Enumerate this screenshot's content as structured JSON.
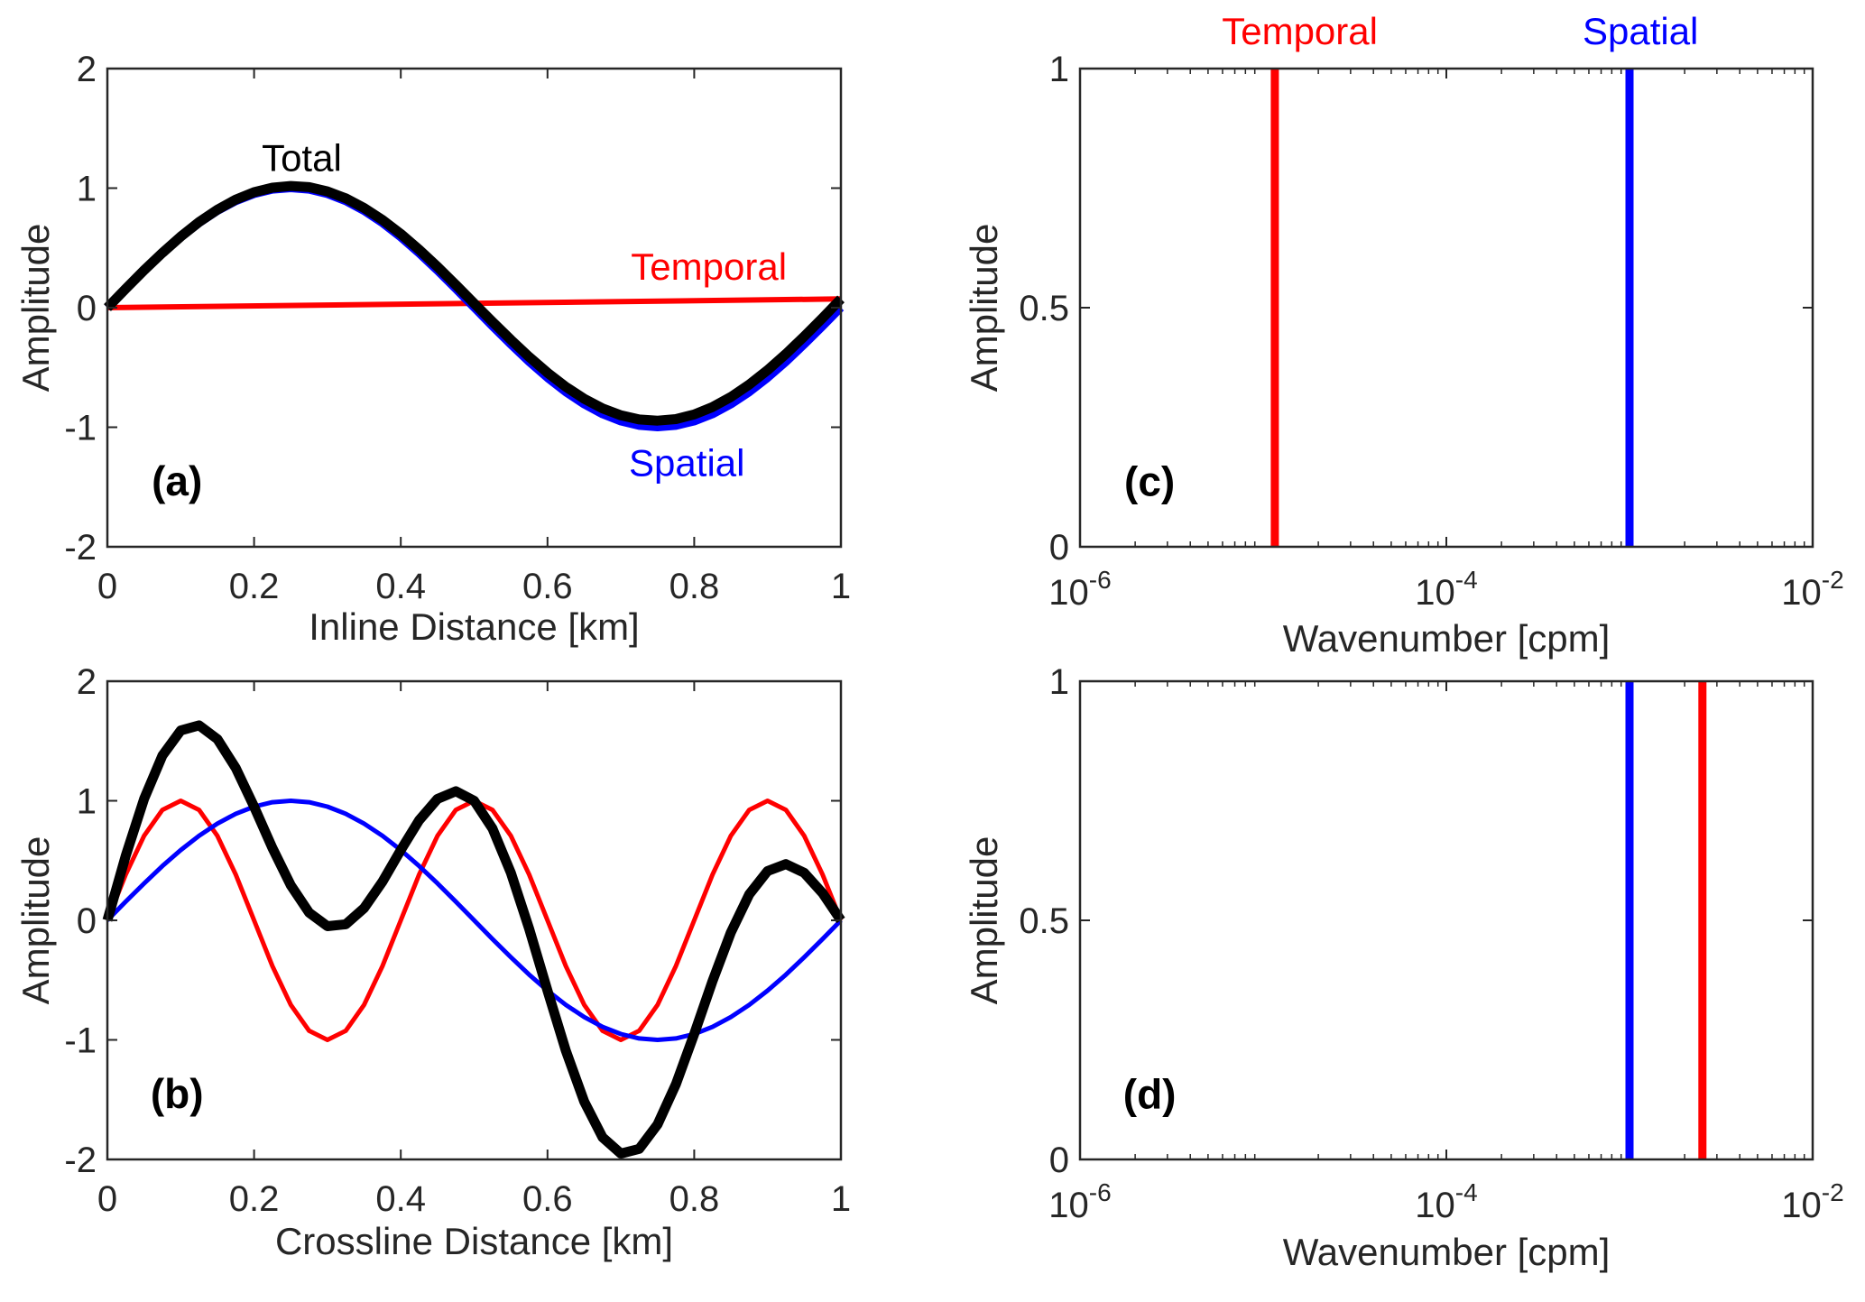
{
  "chart_data": [
    {
      "panel": "(a)",
      "type": "line",
      "xlabel": "Inline Distance [km]",
      "ylabel": "Amplitude",
      "xlim": [
        0,
        1
      ],
      "ylim": [
        -2,
        2
      ],
      "xticks": [
        0,
        0.2,
        0.4,
        0.6,
        0.8,
        1
      ],
      "xtick_labels": [
        "0",
        "0.2",
        "0.4",
        "0.6",
        "0.8",
        "1"
      ],
      "yticks": [
        -2,
        -1,
        0,
        1,
        2
      ],
      "ytick_labels": [
        "-2",
        "-1",
        "0",
        "1",
        "2"
      ],
      "series": [
        {
          "name": "Temporal",
          "color": "#ff0000",
          "x": [
            0,
            1
          ],
          "y": [
            0,
            0.073
          ]
        },
        {
          "name": "Spatial",
          "color": "#0000ff",
          "x": [
            0,
            0.025,
            0.05,
            0.075,
            0.1,
            0.125,
            0.15,
            0.175,
            0.2,
            0.225,
            0.25,
            0.275,
            0.3,
            0.325,
            0.35,
            0.375,
            0.4,
            0.425,
            0.45,
            0.475,
            0.5,
            0.525,
            0.55,
            0.575,
            0.6,
            0.625,
            0.65,
            0.675,
            0.7,
            0.725,
            0.75,
            0.775,
            0.8,
            0.825,
            0.85,
            0.875,
            0.9,
            0.925,
            0.95,
            0.975,
            1
          ],
          "y": [
            0,
            0.156,
            0.309,
            0.454,
            0.588,
            0.707,
            0.809,
            0.891,
            0.951,
            0.988,
            1,
            0.988,
            0.951,
            0.891,
            0.809,
            0.707,
            0.588,
            0.454,
            0.309,
            0.156,
            0,
            -0.156,
            -0.309,
            -0.454,
            -0.588,
            -0.707,
            -0.809,
            -0.891,
            -0.951,
            -0.988,
            -1,
            -0.988,
            -0.951,
            -0.891,
            -0.809,
            -0.707,
            -0.588,
            -0.454,
            -0.309,
            -0.156,
            0
          ]
        },
        {
          "name": "Total",
          "color": "#000000",
          "x": [
            0,
            0.025,
            0.05,
            0.075,
            0.1,
            0.125,
            0.15,
            0.175,
            0.2,
            0.225,
            0.25,
            0.275,
            0.3,
            0.325,
            0.35,
            0.375,
            0.4,
            0.425,
            0.45,
            0.475,
            0.5,
            0.525,
            0.55,
            0.575,
            0.6,
            0.625,
            0.65,
            0.675,
            0.7,
            0.725,
            0.75,
            0.775,
            0.8,
            0.825,
            0.85,
            0.875,
            0.9,
            0.925,
            0.95,
            0.975,
            1
          ],
          "y": [
            0,
            0.158,
            0.313,
            0.459,
            0.595,
            0.716,
            0.82,
            0.904,
            0.966,
            1.004,
            1.018,
            1.008,
            0.973,
            0.915,
            0.834,
            0.734,
            0.617,
            0.485,
            0.342,
            0.191,
            0.036,
            -0.118,
            -0.269,
            -0.412,
            -0.544,
            -0.662,
            -0.762,
            -0.842,
            -0.9,
            -0.935,
            -0.945,
            -0.932,
            -0.893,
            -0.831,
            -0.747,
            -0.643,
            -0.522,
            -0.387,
            -0.24,
            -0.086,
            0.073
          ]
        }
      ],
      "annotations": [
        {
          "text": "Total",
          "color": "#000000"
        },
        {
          "text": "Temporal",
          "color": "#ff0000"
        },
        {
          "text": "Spatial",
          "color": "#0000ff"
        }
      ]
    },
    {
      "panel": "(b)",
      "type": "line",
      "xlabel": "Crossline Distance [km]",
      "ylabel": "Amplitude",
      "xlim": [
        0,
        1
      ],
      "ylim": [
        -2,
        2
      ],
      "xticks": [
        0,
        0.2,
        0.4,
        0.6,
        0.8,
        1
      ],
      "xtick_labels": [
        "0",
        "0.2",
        "0.4",
        "0.6",
        "0.8",
        "1"
      ],
      "yticks": [
        -2,
        -1,
        0,
        1,
        2
      ],
      "ytick_labels": [
        "-2",
        "-1",
        "0",
        "1",
        "2"
      ],
      "series": [
        {
          "name": "Temporal",
          "color": "#ff0000",
          "x": [
            0,
            0.025,
            0.05,
            0.075,
            0.1,
            0.125,
            0.15,
            0.175,
            0.2,
            0.225,
            0.25,
            0.275,
            0.3,
            0.325,
            0.35,
            0.375,
            0.4,
            0.425,
            0.45,
            0.475,
            0.5,
            0.525,
            0.55,
            0.575,
            0.6,
            0.625,
            0.65,
            0.675,
            0.7,
            0.725,
            0.75,
            0.775,
            0.8,
            0.825,
            0.85,
            0.875,
            0.9,
            0.925,
            0.95,
            0.975,
            1
          ],
          "y": [
            0,
            0.383,
            0.707,
            0.924,
            1,
            0.924,
            0.707,
            0.383,
            0,
            -0.383,
            -0.707,
            -0.924,
            -1,
            -0.924,
            -0.707,
            -0.383,
            0,
            0.383,
            0.707,
            0.924,
            1,
            0.924,
            0.707,
            0.383,
            0,
            -0.383,
            -0.707,
            -0.924,
            -1,
            -0.924,
            -0.707,
            -0.383,
            0,
            0.383,
            0.707,
            0.924,
            1,
            0.924,
            0.707,
            0.383,
            0
          ]
        },
        {
          "name": "Spatial",
          "color": "#0000ff",
          "x": [
            0,
            0.025,
            0.05,
            0.075,
            0.1,
            0.125,
            0.15,
            0.175,
            0.2,
            0.225,
            0.25,
            0.275,
            0.3,
            0.325,
            0.35,
            0.375,
            0.4,
            0.425,
            0.45,
            0.475,
            0.5,
            0.525,
            0.55,
            0.575,
            0.6,
            0.625,
            0.65,
            0.675,
            0.7,
            0.725,
            0.75,
            0.775,
            0.8,
            0.825,
            0.85,
            0.875,
            0.9,
            0.925,
            0.95,
            0.975,
            1
          ],
          "y": [
            0,
            0.156,
            0.309,
            0.454,
            0.588,
            0.707,
            0.809,
            0.891,
            0.951,
            0.988,
            1,
            0.988,
            0.951,
            0.891,
            0.809,
            0.707,
            0.588,
            0.454,
            0.309,
            0.156,
            0,
            -0.156,
            -0.309,
            -0.454,
            -0.588,
            -0.707,
            -0.809,
            -0.891,
            -0.951,
            -0.988,
            -1,
            -0.988,
            -0.951,
            -0.891,
            -0.809,
            -0.707,
            -0.588,
            -0.454,
            -0.309,
            -0.156,
            0
          ]
        },
        {
          "name": "Total",
          "color": "#000000",
          "x": [
            0,
            0.025,
            0.05,
            0.075,
            0.1,
            0.125,
            0.15,
            0.175,
            0.2,
            0.225,
            0.25,
            0.275,
            0.3,
            0.325,
            0.35,
            0.375,
            0.4,
            0.425,
            0.45,
            0.475,
            0.5,
            0.525,
            0.55,
            0.575,
            0.6,
            0.625,
            0.65,
            0.675,
            0.7,
            0.725,
            0.75,
            0.775,
            0.8,
            0.825,
            0.85,
            0.875,
            0.9,
            0.925,
            0.95,
            0.975,
            1
          ],
          "y": [
            0,
            0.539,
            1.016,
            1.378,
            1.588,
            1.631,
            1.516,
            1.274,
            0.951,
            0.605,
            0.293,
            0.064,
            -0.049,
            -0.033,
            0.102,
            0.324,
            0.588,
            0.837,
            1.016,
            1.08,
            1,
            0.768,
            0.398,
            -0.071,
            -0.588,
            -1.09,
            -1.516,
            -1.815,
            -1.951,
            -1.912,
            -1.707,
            -1.371,
            -0.951,
            -0.508,
            -0.102,
            0.217,
            0.412,
            0.47,
            0.398,
            0.227,
            0
          ]
        }
      ],
      "annotations": []
    },
    {
      "panel": "(c)",
      "type": "line",
      "xscale": "log",
      "xlabel": "Wavenumber [cpm]",
      "ylabel": "Amplitude",
      "xlim": [
        1e-06,
        0.01
      ],
      "ylim": [
        0,
        1
      ],
      "xticks": [
        1e-06,
        0.0001,
        0.01
      ],
      "xtick_labels": [
        {
          "base": "10",
          "exp": "-6"
        },
        {
          "base": "10",
          "exp": "-4"
        },
        {
          "base": "10",
          "exp": "-2"
        }
      ],
      "yticks": [
        0,
        0.5,
        1
      ],
      "ytick_labels": [
        "0",
        "0.5",
        "1"
      ],
      "series": [
        {
          "name": "Temporal",
          "color": "#ff0000",
          "x": [
            1.157e-05,
            1.157e-05
          ],
          "y": [
            0,
            1
          ]
        },
        {
          "name": "Spatial",
          "color": "#0000ff",
          "x": [
            0.001,
            0.001
          ],
          "y": [
            0,
            1
          ]
        }
      ],
      "annotations": [
        {
          "text": "Temporal",
          "color": "#ff0000"
        },
        {
          "text": "Spatial",
          "color": "#0000ff"
        }
      ]
    },
    {
      "panel": "(d)",
      "type": "line",
      "xscale": "log",
      "xlabel": "Wavenumber [cpm]",
      "ylabel": "Amplitude",
      "xlim": [
        1e-06,
        0.01
      ],
      "ylim": [
        0,
        1
      ],
      "xticks": [
        1e-06,
        0.0001,
        0.01
      ],
      "xtick_labels": [
        {
          "base": "10",
          "exp": "-6"
        },
        {
          "base": "10",
          "exp": "-4"
        },
        {
          "base": "10",
          "exp": "-2"
        }
      ],
      "yticks": [
        0,
        0.5,
        1
      ],
      "ytick_labels": [
        "0",
        "0.5",
        "1"
      ],
      "series": [
        {
          "name": "Spatial",
          "color": "#0000ff",
          "x": [
            0.001,
            0.001
          ],
          "y": [
            0,
            1
          ]
        },
        {
          "name": "Temporal",
          "color": "#ff0000",
          "x": [
            0.0025,
            0.0025
          ],
          "y": [
            0,
            1
          ]
        }
      ],
      "annotations": []
    }
  ]
}
